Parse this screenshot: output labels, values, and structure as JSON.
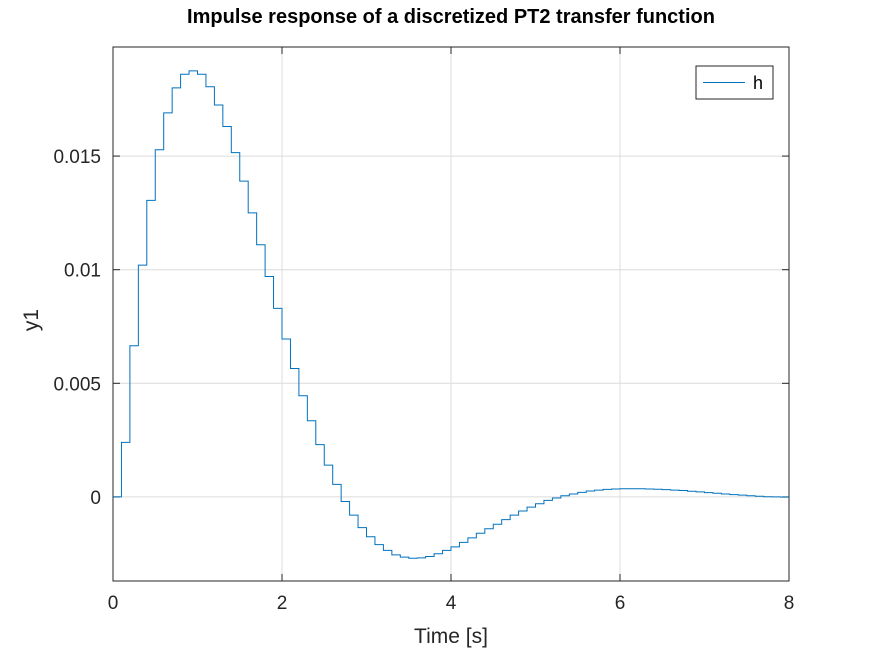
{
  "chart_data": {
    "type": "line",
    "step": true,
    "title": "Impulse response of a discretized PT2 transfer function",
    "xlabel": "Time [s]",
    "ylabel": "y1",
    "xlim": [
      0,
      8
    ],
    "ylim": [
      -0.0037,
      0.0198
    ],
    "xticks": [
      0,
      2,
      4,
      6,
      8
    ],
    "xtick_labels": [
      "0",
      "2",
      "4",
      "6",
      "8"
    ],
    "yticks": [
      0,
      0.005,
      0.01,
      0.015
    ],
    "ytick_labels": [
      "0",
      "0.005",
      "0.01",
      "0.015"
    ],
    "grid": true,
    "legend_position": "top-right",
    "sample_time": 0.1,
    "series": [
      {
        "name": "h",
        "color": "#0072BD",
        "values": [
          0,
          0.0024,
          0.00665,
          0.0102,
          0.01305,
          0.01528,
          0.0169,
          0.018,
          0.0186,
          0.01875,
          0.0186,
          0.01805,
          0.01725,
          0.0163,
          0.01515,
          0.0139,
          0.0125,
          0.0111,
          0.0097,
          0.0083,
          0.00695,
          0.00565,
          0.00445,
          0.00335,
          0.0023,
          0.0014,
          0.00055,
          -0.0002,
          -0.0008,
          -0.00135,
          -0.00175,
          -0.0021,
          -0.00235,
          -0.00255,
          -0.00265,
          -0.0027,
          -0.00268,
          -0.00262,
          -0.0025,
          -0.00235,
          -0.0022,
          -0.002,
          -0.0018,
          -0.0016,
          -0.0014,
          -0.0012,
          -0.001,
          -0.0008,
          -0.00062,
          -0.00045,
          -0.0003,
          -0.00015,
          -5e-05,
          5e-05,
          0.00013,
          0.0002,
          0.00026,
          0.0003,
          0.00033,
          0.00035,
          0.00036,
          0.00036,
          0.00036,
          0.00035,
          0.00034,
          0.00032,
          0.0003,
          0.00028,
          0.00025,
          0.00022,
          0.00019,
          0.00016,
          0.00013,
          0.0001,
          8e-05,
          5e-05,
          3e-05,
          1e-05,
          0.0,
          -1e-05
        ]
      }
    ]
  }
}
